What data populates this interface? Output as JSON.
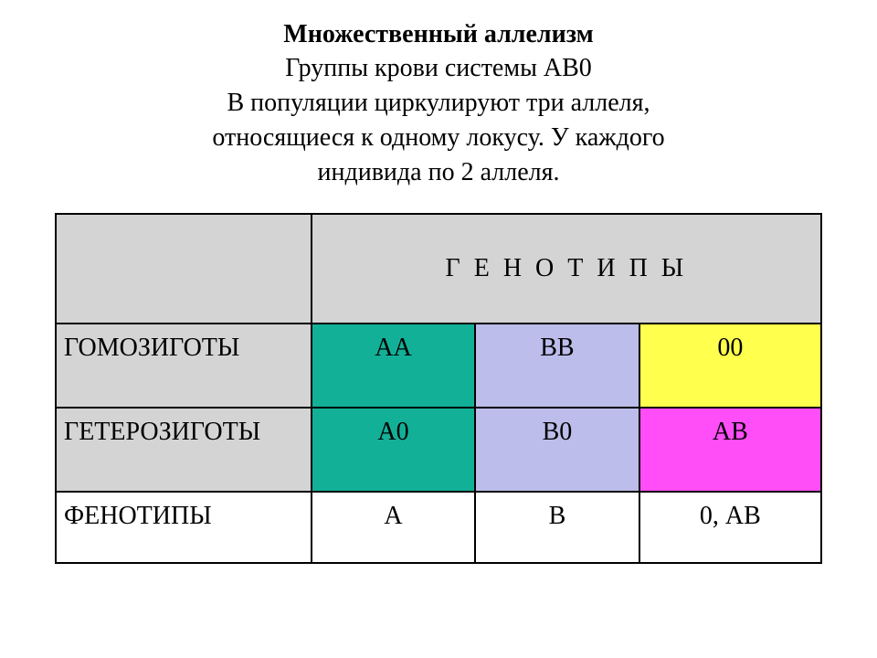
{
  "header": {
    "title": "Множественный аллелизм",
    "line1": "Группы крови системы АВ0",
    "line2": "В популяции циркулируют три аллеля,",
    "line3": "относящиеся к одному локусу. У каждого",
    "line4": "индивида по 2 аллеля."
  },
  "table": {
    "header_right": "Г Е Н О Т И П Ы",
    "rows": [
      {
        "label": "ГОМОЗИГОТЫ",
        "c1": "АА",
        "c2": "ВВ",
        "c3": "00"
      },
      {
        "label": "ГЕТЕРОЗИГОТЫ",
        "c1": "А0",
        "c2": "В0",
        "c3": "АВ"
      },
      {
        "label": "ФЕНОТИПЫ",
        "c1": "А",
        "c2": "В",
        "c3": "0, АВ"
      }
    ]
  },
  "colors": {
    "header_bg": "#d4d4d4",
    "label_bg": "#d4d4d4",
    "green": "#13b098",
    "lavender": "#bcbdea",
    "yellow": "#ffff4d",
    "magenta": "#ff4df8",
    "white": "#ffffff",
    "col_widths": {
      "c0": 280,
      "c1": 180,
      "c2": 180,
      "c3": 200
    }
  }
}
